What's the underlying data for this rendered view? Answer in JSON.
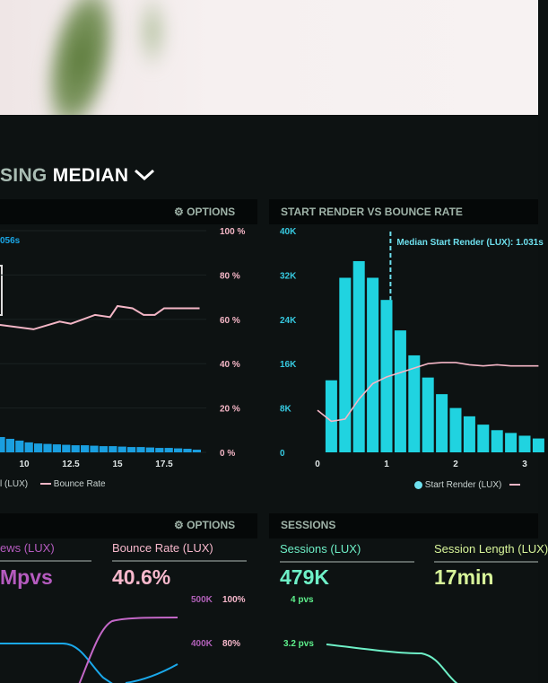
{
  "header": {
    "title_prefix": "SING",
    "title_main": "MEDIAN",
    "chevron": "chevron-down-icon"
  },
  "left_panel": {
    "options_label": "OPTIONS",
    "options_icon": "gear-icon",
    "median_fragment": "056s",
    "legend_first_fragment": "l (LUX)",
    "legend_bounce": "Bounce Rate"
  },
  "right_panel": {
    "title": "START RENDER VS BOUNCE RATE",
    "median_label": "Median Start Render (LUX): 1.031s",
    "legend_start": "Start Render (LUX)"
  },
  "bottom_left": {
    "options_label": "OPTIONS",
    "kpis": [
      {
        "label": "ews (LUX)",
        "value": "Mpvs",
        "color": "#b55bbf"
      },
      {
        "label": "Bounce Rate (LUX)",
        "value": "40.6%",
        "color": "#f7b8cc"
      }
    ],
    "axis": [
      {
        "a": "500K",
        "b": "100%"
      },
      {
        "a": "400K",
        "b": "80%"
      }
    ]
  },
  "bottom_right": {
    "title": "SESSIONS",
    "kpis": [
      {
        "label": "Sessions (LUX)",
        "value": "479K",
        "color": "#6ef0c7"
      },
      {
        "label": "Session Length (LUX)",
        "value": "17min",
        "color": "#d8f59a"
      }
    ],
    "axis": [
      "4 pvs",
      "3.2 pvs"
    ]
  },
  "colors": {
    "bar_cyan": "#20d3e0",
    "bar_blue": "#1a9fe0",
    "bounce_pink": "#f4b6c6",
    "axis_pct": "#f4b6c6",
    "axis_k": "#36c9e0"
  },
  "chart_data": [
    {
      "type": "bar",
      "title": "",
      "x_ticks": [
        "10",
        "12.5",
        "15",
        "17.5"
      ],
      "y_right_ticks": [
        "100 %",
        "80 %",
        "60 %",
        "40 %",
        "20 %",
        "0 %"
      ],
      "ylim_right": [
        0,
        100
      ],
      "bars": {
        "x": [
          8.75,
          9.25,
          9.75,
          10.25,
          10.75,
          11.25,
          11.75,
          12.25,
          12.75,
          13.25,
          13.75,
          14.25,
          14.75,
          15.25,
          15.75,
          16.25,
          16.75,
          17.25,
          17.75,
          18.25,
          18.75,
          19.25
        ],
        "values": [
          6.9,
          6.1,
          5.3,
          4.5,
          4,
          3.8,
          3.6,
          3.4,
          3.2,
          3.2,
          3,
          2.8,
          2.8,
          2.6,
          2.4,
          2.4,
          2.2,
          2,
          2,
          1.8,
          1.6,
          1.2
        ]
      },
      "series": [
        {
          "name": "Bounce Rate",
          "x": [
            8.7,
            10.5,
            11.9,
            12.5,
            13.8,
            14.6,
            15,
            15.8,
            16.4,
            17,
            17.5,
            19.4
          ],
          "y": [
            57.5,
            55.5,
            59,
            58,
            62,
            61,
            66,
            65,
            62,
            62,
            65,
            65
          ]
        }
      ],
      "grid": true
    },
    {
      "type": "bar",
      "title": "START RENDER VS BOUNCE RATE",
      "x_ticks": [
        "0",
        "1",
        "2",
        "3"
      ],
      "y_ticks": [
        "40K",
        "32K",
        "24K",
        "16K",
        "8K",
        "0"
      ],
      "xlim": [
        -0.1,
        3.2
      ],
      "ylim": [
        0,
        40000
      ],
      "median": 1.031,
      "series": [
        {
          "name": "Start Render (LUX)",
          "x": [
            0.2,
            0.4,
            0.6,
            0.8,
            1.0,
            1.2,
            1.4,
            1.6,
            1.8,
            2.0,
            2.2,
            2.4,
            2.6,
            2.8,
            3.0,
            3.2
          ],
          "values": [
            13000,
            31500,
            34500,
            31500,
            27500,
            22000,
            17500,
            13500,
            10500,
            8000,
            6500,
            5000,
            4000,
            3500,
            3000,
            2500
          ]
        },
        {
          "name": "Bounce Rate",
          "unit": "%",
          "x": [
            0,
            0.2,
            0.4,
            0.6,
            0.8,
            1,
            1.2,
            1.4,
            1.6,
            1.8,
            2,
            2.2,
            2.4,
            2.6,
            2.8,
            3.2
          ],
          "y": [
            19,
            14,
            15,
            24,
            31,
            34,
            36,
            38,
            40,
            40.5,
            40.5,
            39.5,
            39,
            39.5,
            39,
            39
          ]
        }
      ]
    }
  ]
}
